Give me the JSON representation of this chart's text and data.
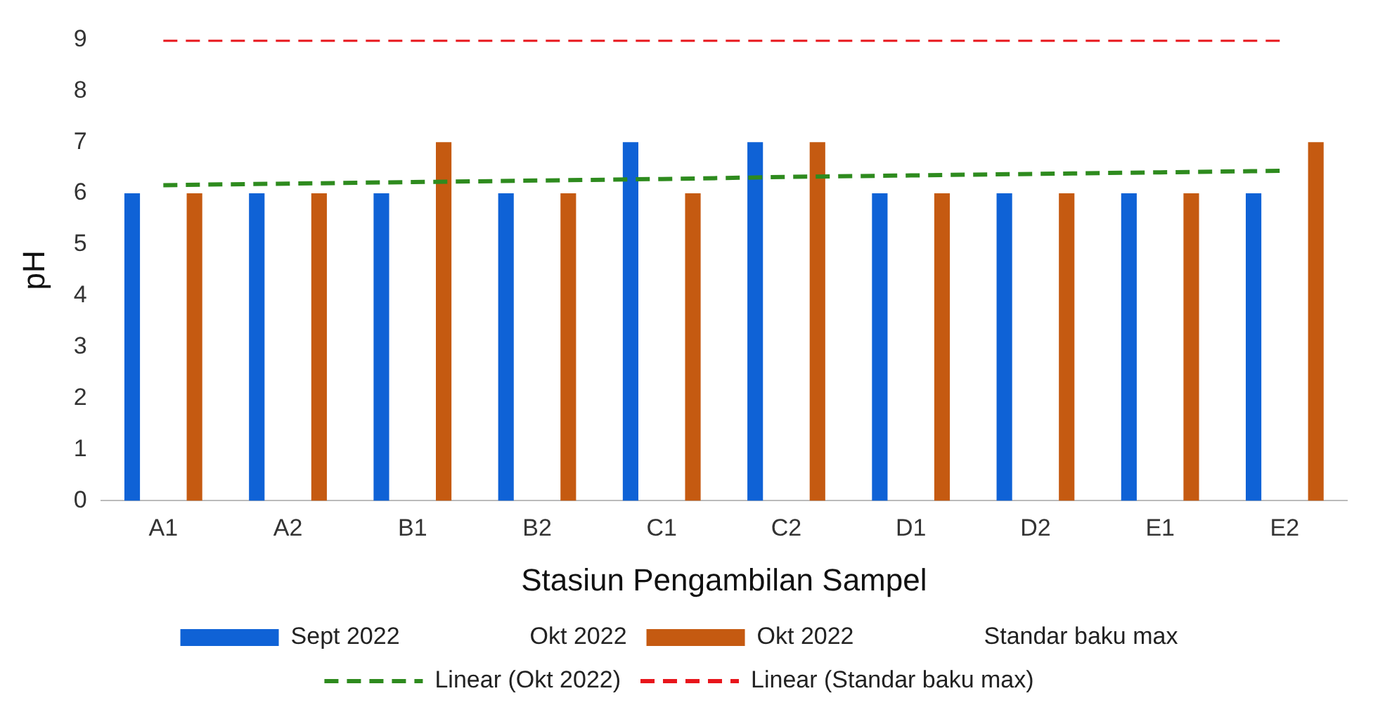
{
  "chart_data": {
    "type": "bar",
    "xlabel": "Stasiun Pengambilan Sampel",
    "ylabel": "pH",
    "categories": [
      "A1",
      "A2",
      "B1",
      "B2",
      "C1",
      "C2",
      "D1",
      "D2",
      "E1",
      "E2"
    ],
    "ylim": [
      0,
      9
    ],
    "yticks": [
      0,
      1,
      2,
      3,
      4,
      5,
      6,
      7,
      8,
      9
    ],
    "grid": false,
    "legend": "bottom",
    "series": [
      {
        "name": "Sept 2022",
        "color": "#0f62d6",
        "values": [
          6,
          6,
          6,
          6,
          7,
          7,
          6,
          6,
          6,
          6
        ]
      },
      {
        "name": "Okt 2022",
        "type": "line",
        "values": [
          null,
          null,
          null,
          null,
          null,
          null,
          null,
          null,
          null,
          null
        ]
      },
      {
        "name": "Okt 2022",
        "color": "#c55a11",
        "values": [
          6,
          6,
          7,
          6,
          6,
          7,
          6,
          6,
          6,
          7
        ]
      },
      {
        "name": "Standar baku max",
        "type": "line",
        "values": [
          null,
          null,
          null,
          null,
          null,
          null,
          null,
          null,
          null,
          null
        ]
      },
      {
        "name": "Linear (Okt 2022)",
        "type": "line",
        "color": "#2e8b1e",
        "line_style": "dashed",
        "values": [
          6.16,
          6.19,
          6.22,
          6.25,
          6.28,
          6.32,
          6.35,
          6.38,
          6.41,
          6.44
        ]
      },
      {
        "name": "Linear (Standar baku max)",
        "type": "line",
        "color": "#e8151b",
        "line_style": "dashed",
        "values": [
          9,
          9,
          9,
          9,
          9,
          9,
          9,
          9,
          9,
          9
        ]
      }
    ]
  }
}
